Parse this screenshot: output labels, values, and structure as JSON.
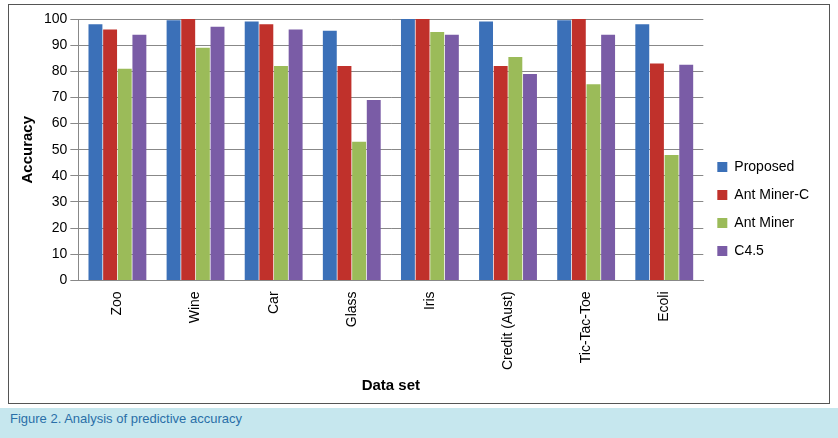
{
  "chart_data": {
    "type": "bar",
    "caption": "Figure 2. Analysis of predictive accuracy",
    "x_label": "Data set",
    "y_label": "Accuracy",
    "categories": [
      "Zoo",
      "Wine",
      "Car",
      "Glass",
      "Iris",
      "Credit (Aust)",
      "Tic-Tac-Toe",
      "Ecoli"
    ],
    "series": [
      {
        "name": "Proposed",
        "color": "#3b70b8",
        "values": [
          98,
          99.5,
          99,
          95.5,
          100,
          99,
          99.5,
          98
        ]
      },
      {
        "name": "Ant Miner-C",
        "color": "#c0312b",
        "values": [
          96,
          100,
          98,
          82,
          100,
          82,
          100,
          83
        ]
      },
      {
        "name": "Ant Miner",
        "color": "#9bbb59",
        "values": [
          81,
          89,
          82,
          53,
          95,
          85.5,
          75,
          48
        ]
      },
      {
        "name": "C4.5",
        "color": "#7a5ca6",
        "values": [
          94,
          97,
          96,
          69,
          94,
          79,
          94,
          82.5
        ]
      }
    ],
    "ylim": [
      0,
      100
    ],
    "yticks": [
      0,
      10,
      20,
      30,
      40,
      50,
      60,
      70,
      80,
      90,
      100
    ],
    "grid": true,
    "legend": "right"
  }
}
